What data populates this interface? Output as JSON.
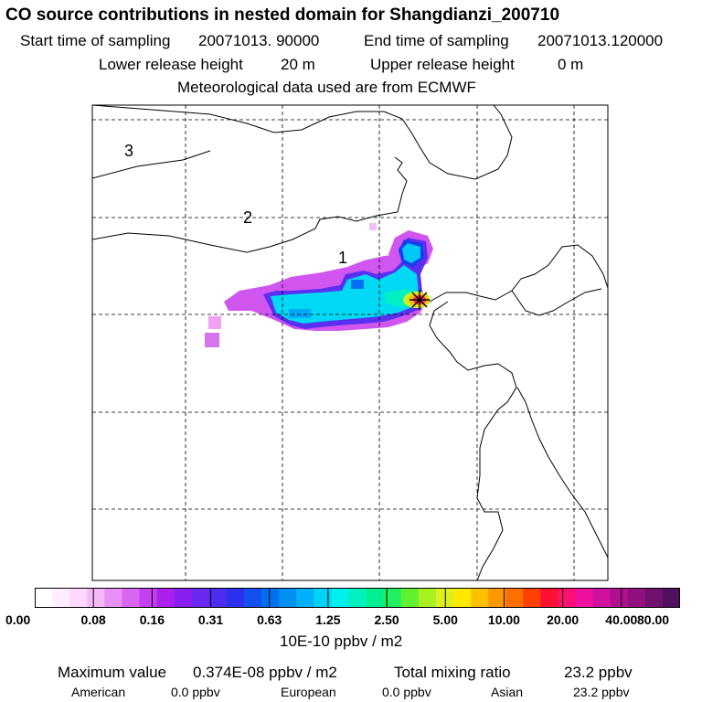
{
  "header": {
    "title": "CO  source contributions in nested domain for Shangdianzi_200710",
    "start_label": "Start time of sampling",
    "start_value": "20071013. 90000",
    "end_label": "End time of sampling",
    "end_value": "20071013.120000",
    "lower_label": "Lower release height",
    "lower_value": "20 m",
    "upper_label": "Upper release height",
    "upper_value": "0 m",
    "met_note": "Meteorological data used are from ECMWF"
  },
  "map": {
    "domain_labels": [
      "3",
      "2",
      "1"
    ],
    "station_marker": "star-marker"
  },
  "colorbar": {
    "colors": [
      "#ffffff",
      "#ffeeff",
      "#ffd8ff",
      "#f5b8f8",
      "#e890f5",
      "#d966f0",
      "#c440ee",
      "#ab20f0",
      "#8a20f0",
      "#6a28f0",
      "#4c2cf0",
      "#2e30f0",
      "#1450f0",
      "#0070f0",
      "#0090f4",
      "#00b0f8",
      "#00d4f6",
      "#00f0ee",
      "#00f0c0",
      "#00f090",
      "#20f060",
      "#60f030",
      "#a8f020",
      "#dcf020",
      "#ffe800",
      "#ffc000",
      "#ff9800",
      "#ff7000",
      "#ff4000",
      "#ff1030",
      "#ff1070",
      "#f010a0",
      "#d010a0",
      "#b01090",
      "#901080",
      "#701070",
      "#501060"
    ],
    "ticks": [
      "0.00",
      "0.08",
      "0.16",
      "0.31",
      "0.63",
      "1.25",
      "2.50",
      "5.00",
      "10.00",
      "20.00",
      "40.00",
      "80.00"
    ],
    "unit": "10E-10 ppbv / m2"
  },
  "summary": {
    "max_label": "Maximum value",
    "max_value": "0.374E-08 ppbv / m2",
    "total_label": "Total mixing ratio",
    "total_value": "23.2 ppbv",
    "american_label": "American",
    "american_value": "0.0 ppbv",
    "european_label": "European",
    "european_value": "0.0 ppbv",
    "asian_label": "Asian",
    "asian_value": "23.2 ppbv"
  }
}
